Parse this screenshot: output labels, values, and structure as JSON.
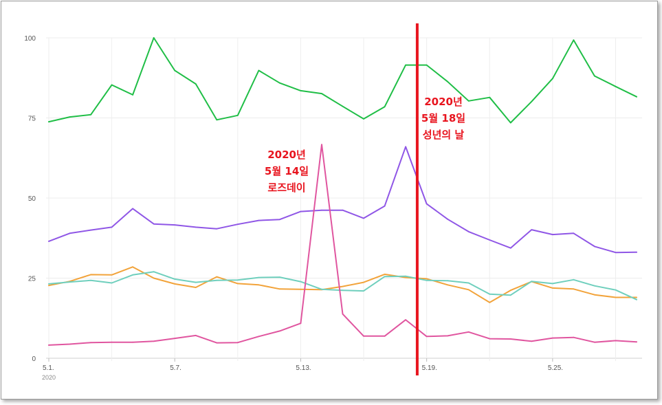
{
  "chart_data": {
    "type": "line",
    "x": [
      "5.1.",
      "5.2.",
      "5.3.",
      "5.4.",
      "5.5.",
      "5.6.",
      "5.7.",
      "5.8.",
      "5.9.",
      "5.10.",
      "5.11.",
      "5.12.",
      "5.13.",
      "5.14.",
      "5.15.",
      "5.16.",
      "5.17.",
      "5.18.",
      "5.19.",
      "5.20.",
      "5.21.",
      "5.22.",
      "5.23.",
      "5.24.",
      "5.25.",
      "5.26.",
      "5.27.",
      "5.28.",
      "5.29."
    ],
    "xtick_labels": [
      "5.1.",
      "5.7.",
      "5.13.",
      "5.19.",
      "5.25."
    ],
    "xtick_indices": [
      0,
      6,
      12,
      18,
      24
    ],
    "year_label": "2020",
    "ylim": [
      0,
      100
    ],
    "yticks": [
      0,
      25,
      50,
      75,
      100
    ],
    "ytick_labels": [
      "0",
      "25",
      "50",
      "75",
      "100"
    ],
    "grid": true,
    "series": [
      {
        "color": "#1fbe46",
        "values": [
          73.8,
          75.3,
          76,
          85.3,
          82.2,
          100,
          89.8,
          85.6,
          74.4,
          75.8,
          89.8,
          85.9,
          83.5,
          82.6,
          78.6,
          74.7,
          78.5,
          91.5,
          91.5,
          86.3,
          80.3,
          81.4,
          73.5,
          80.1,
          87.3,
          99.3,
          88.1,
          84.8,
          81.6
        ]
      },
      {
        "color": "#8f56e6",
        "values": [
          36.5,
          39,
          40,
          40.9,
          46.7,
          41.9,
          41.6,
          40.9,
          40.4,
          41.8,
          43,
          43.3,
          45.8,
          46.2,
          46.2,
          43.7,
          47.5,
          66,
          48.2,
          43.4,
          39.5,
          36.9,
          34.4,
          40.1,
          38.6,
          39,
          34.9,
          33,
          33.1
        ]
      },
      {
        "color": "#f2a33a",
        "values": [
          22.7,
          24,
          26.1,
          26,
          28.5,
          25,
          23.2,
          22.1,
          25.4,
          23.3,
          22.9,
          21.6,
          21.5,
          21.4,
          22.4,
          23.7,
          26.2,
          25.2,
          24.8,
          22.9,
          21.4,
          17.4,
          21.2,
          23.9,
          21.9,
          21.6,
          19.8,
          19,
          19
        ]
      },
      {
        "color": "#6fcfbd",
        "values": [
          23.2,
          23.8,
          24.3,
          23.5,
          26,
          27,
          24.7,
          23.7,
          24.3,
          24.4,
          25.2,
          25.3,
          23.9,
          21.5,
          21.2,
          21,
          25.5,
          25.6,
          24.3,
          24.2,
          23.5,
          20,
          19.7,
          24,
          23.3,
          24.5,
          22.6,
          21.3,
          18.3
        ]
      },
      {
        "color": "#e0559f",
        "values": [
          4.1,
          4.4,
          4.9,
          5,
          5,
          5.3,
          6.2,
          7.1,
          4.8,
          4.9,
          6.8,
          8.5,
          10.9,
          66.7,
          13.8,
          6.9,
          6.9,
          12,
          6.8,
          7,
          8.2,
          6.1,
          6,
          5.3,
          6.3,
          6.5,
          5,
          5.5,
          5.1
        ]
      }
    ],
    "event_marker": {
      "x_index": 17.55,
      "color": "#e8141e"
    },
    "annotations": [
      {
        "lines": [
          "2020년",
          "5월 14일",
          "로즈데이"
        ]
      },
      {
        "lines": [
          "2020년",
          "5월 18일",
          "성년의 날"
        ]
      }
    ]
  }
}
